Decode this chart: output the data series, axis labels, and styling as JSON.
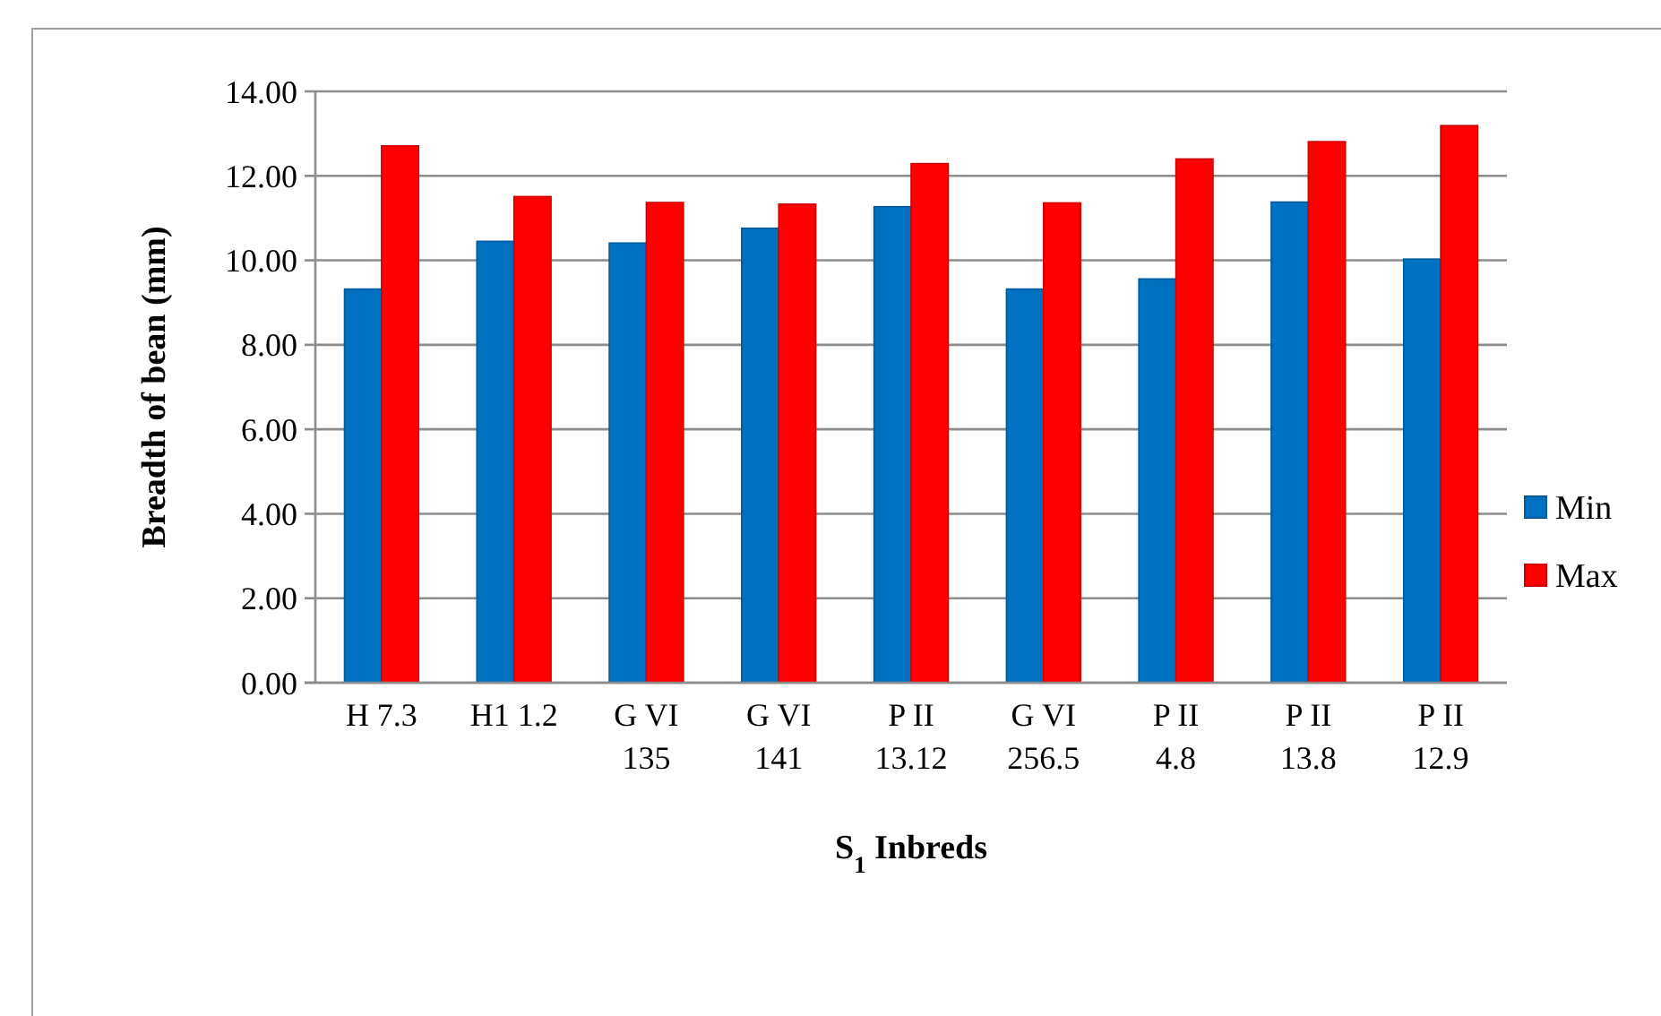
{
  "chart_data": {
    "type": "bar",
    "xlabel": "S$_{1}$ Inbreds",
    "ylabel": "Breadth of bean (mm)",
    "categories": [
      "H 7.3",
      "H1 1.2",
      "G VI 135",
      "G VI 141",
      "P II 13.12",
      "G VI 256.5",
      "P II 4.8",
      "P II 13.8",
      "P II 12.9"
    ],
    "series": [
      {
        "name": "Min",
        "color": "#0070c0",
        "values": [
          9.32,
          10.45,
          10.41,
          10.76,
          11.27,
          9.32,
          9.56,
          11.38,
          10.03
        ]
      },
      {
        "name": "Max",
        "color": "#ff0000",
        "values": [
          12.71,
          11.51,
          11.37,
          11.33,
          12.29,
          11.36,
          12.4,
          12.81,
          13.19
        ]
      }
    ],
    "ylim": [
      0,
      14
    ],
    "yticks": [
      {
        "value": 0,
        "label": "0.00"
      },
      {
        "value": 2,
        "label": "2.00"
      },
      {
        "value": 4,
        "label": "4.00"
      },
      {
        "value": 6,
        "label": "6.00"
      },
      {
        "value": 8,
        "label": "8.00"
      },
      {
        "value": 10,
        "label": "10.00"
      },
      {
        "value": 12,
        "label": "12.00"
      },
      {
        "value": 14,
        "label": "14.00"
      }
    ],
    "grid": "y",
    "legend": "right"
  }
}
